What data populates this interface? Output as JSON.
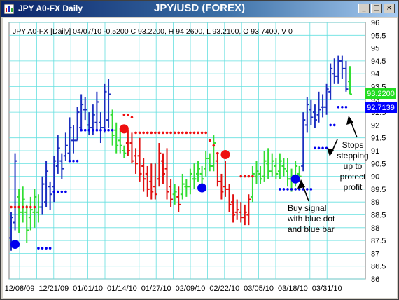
{
  "window": {
    "app_title": "JPY A0-FX Daily",
    "chart_title": "JPY/USD (FOREX)",
    "minimize_icon": "minimize-icon",
    "maximize_icon": "maximize-icon",
    "close_icon": "close-icon"
  },
  "header_info": "JPY A0-FX [Daily] 04/07/10  -0.5200 C 93.2200, H 94.2600, L 93.2100, O 93.7400, V 0",
  "price_labels": {
    "last_close": "93.2200",
    "stop_level": "92.7139"
  },
  "annotations": {
    "buy_signal": [
      "Buy signal",
      "with blue dot",
      "and blue bar"
    ],
    "stops": [
      "Stops",
      "stepping",
      "up to",
      "protect",
      "profit"
    ]
  },
  "colors": {
    "bar_blue": "#1c2fc0",
    "bar_green": "#33dd33",
    "bar_red": "#e01010",
    "stop_blue": "#0000ee",
    "stop_red": "#ee1010",
    "grid": "#66e0e0",
    "green_label": "#22dd22",
    "blue_label": "#0000ff"
  },
  "chart_data": {
    "type": "ohlc",
    "y_ticks": [
      86,
      86.5,
      87,
      87.5,
      88,
      88.5,
      89,
      89.5,
      90,
      90.5,
      91,
      91.5,
      92,
      92.5,
      93,
      93.5,
      94,
      94.5,
      95,
      95.5,
      96
    ],
    "ylim": [
      86,
      96
    ],
    "x_ticks": [
      "12/08/09",
      "12/21/09",
      "01/01/10",
      "01/14/10",
      "01/27/10",
      "02/09/10",
      "02/22/10",
      "03/05/10",
      "03/18/10",
      "03/31/10"
    ],
    "bars": [
      {
        "o": 87.6,
        "h": 88.6,
        "l": 87.1,
        "c": 88.4,
        "col": "blue"
      },
      {
        "o": 88.2,
        "h": 90.9,
        "l": 87.9,
        "c": 90.6,
        "col": "blue"
      },
      {
        "o": 89.2,
        "h": 89.5,
        "l": 87.8,
        "c": 88.6,
        "col": "green"
      },
      {
        "o": 88.6,
        "h": 89.6,
        "l": 88.2,
        "c": 89.1,
        "col": "green"
      },
      {
        "o": 88.6,
        "h": 88.9,
        "l": 87.4,
        "c": 87.9,
        "col": "green"
      },
      {
        "o": 88.4,
        "h": 89.2,
        "l": 87.9,
        "c": 88.7,
        "col": "green"
      },
      {
        "o": 88.6,
        "h": 89.5,
        "l": 88.0,
        "c": 89.2,
        "col": "green"
      },
      {
        "o": 88.6,
        "h": 89.3,
        "l": 88.2,
        "c": 88.8,
        "col": "green"
      },
      {
        "o": 88.8,
        "h": 90.0,
        "l": 88.5,
        "c": 89.7,
        "col": "blue"
      },
      {
        "o": 89.0,
        "h": 90.6,
        "l": 88.8,
        "c": 90.2,
        "col": "blue"
      },
      {
        "o": 89.6,
        "h": 89.8,
        "l": 88.7,
        "c": 89.3,
        "col": "blue"
      },
      {
        "o": 89.6,
        "h": 90.8,
        "l": 89.0,
        "c": 90.6,
        "col": "blue"
      },
      {
        "o": 90.4,
        "h": 91.6,
        "l": 90.1,
        "c": 91.1,
        "col": "blue"
      },
      {
        "o": 90.6,
        "h": 90.9,
        "l": 89.9,
        "c": 90.3,
        "col": "blue"
      },
      {
        "o": 90.8,
        "h": 91.7,
        "l": 90.6,
        "c": 91.2,
        "col": "blue"
      },
      {
        "o": 90.9,
        "h": 92.3,
        "l": 90.6,
        "c": 91.9,
        "col": "blue"
      },
      {
        "o": 91.4,
        "h": 92.0,
        "l": 90.9,
        "c": 91.4,
        "col": "blue"
      },
      {
        "o": 91.4,
        "h": 92.7,
        "l": 91.4,
        "c": 92.5,
        "col": "blue"
      },
      {
        "o": 91.9,
        "h": 93.2,
        "l": 91.8,
        "c": 92.8,
        "col": "blue"
      },
      {
        "o": 92.6,
        "h": 93.1,
        "l": 92.2,
        "c": 92.6,
        "col": "blue"
      },
      {
        "o": 92.0,
        "h": 92.5,
        "l": 91.6,
        "c": 91.9,
        "col": "blue"
      },
      {
        "o": 91.9,
        "h": 92.8,
        "l": 91.6,
        "c": 92.4,
        "col": "blue"
      },
      {
        "o": 92.1,
        "h": 93.3,
        "l": 91.8,
        "c": 92.9,
        "col": "blue"
      },
      {
        "o": 92.1,
        "h": 92.5,
        "l": 91.3,
        "c": 91.9,
        "col": "blue"
      },
      {
        "o": 91.9,
        "h": 93.6,
        "l": 91.7,
        "c": 93.3,
        "col": "blue"
      },
      {
        "o": 92.2,
        "h": 93.8,
        "l": 91.9,
        "c": 93.2,
        "col": "blue"
      },
      {
        "o": 92.4,
        "h": 92.6,
        "l": 91.2,
        "c": 91.6,
        "col": "green"
      },
      {
        "o": 91.8,
        "h": 92.1,
        "l": 90.9,
        "c": 91.2,
        "col": "green"
      },
      {
        "o": 91.4,
        "h": 91.9,
        "l": 90.9,
        "c": 91.2,
        "col": "green"
      },
      {
        "o": 91.0,
        "h": 91.2,
        "l": 90.7,
        "c": 90.9,
        "col": "green"
      },
      {
        "o": 91.3,
        "h": 91.8,
        "l": 90.8,
        "c": 91.0,
        "col": "red"
      },
      {
        "o": 91.3,
        "h": 91.7,
        "l": 90.5,
        "c": 90.6,
        "col": "red"
      },
      {
        "o": 90.8,
        "h": 91.1,
        "l": 90.1,
        "c": 90.5,
        "col": "red"
      },
      {
        "o": 90.8,
        "h": 91.5,
        "l": 89.8,
        "c": 90.1,
        "col": "red"
      },
      {
        "o": 90.4,
        "h": 90.7,
        "l": 89.4,
        "c": 89.9,
        "col": "red"
      },
      {
        "o": 90.1,
        "h": 90.4,
        "l": 89.2,
        "c": 89.5,
        "col": "red"
      },
      {
        "o": 89.8,
        "h": 90.5,
        "l": 89.1,
        "c": 89.4,
        "col": "red"
      },
      {
        "o": 89.6,
        "h": 90.5,
        "l": 89.1,
        "c": 89.3,
        "col": "red"
      },
      {
        "o": 89.9,
        "h": 91.3,
        "l": 89.6,
        "c": 90.9,
        "col": "red"
      },
      {
        "o": 90.6,
        "h": 90.9,
        "l": 89.7,
        "c": 90.1,
        "col": "red"
      },
      {
        "o": 90.3,
        "h": 91.1,
        "l": 89.1,
        "c": 89.4,
        "col": "red"
      },
      {
        "o": 89.6,
        "h": 89.9,
        "l": 88.8,
        "c": 89.1,
        "col": "red"
      },
      {
        "o": 89.3,
        "h": 89.7,
        "l": 88.9,
        "c": 89.4,
        "col": "green"
      },
      {
        "o": 89.2,
        "h": 89.6,
        "l": 88.6,
        "c": 88.9,
        "col": "red"
      },
      {
        "o": 89.3,
        "h": 90.1,
        "l": 89.1,
        "c": 89.7,
        "col": "green"
      },
      {
        "o": 89.6,
        "h": 89.9,
        "l": 89.2,
        "c": 89.6,
        "col": "green"
      },
      {
        "o": 89.6,
        "h": 90.3,
        "l": 89.3,
        "c": 90.1,
        "col": "green"
      },
      {
        "o": 89.9,
        "h": 90.5,
        "l": 89.5,
        "c": 89.9,
        "col": "green"
      },
      {
        "o": 90.1,
        "h": 90.6,
        "l": 89.8,
        "c": 90.3,
        "col": "green"
      },
      {
        "o": 90.1,
        "h": 90.4,
        "l": 89.6,
        "c": 89.9,
        "col": "green"
      },
      {
        "o": 90.3,
        "h": 91.0,
        "l": 90.0,
        "c": 90.7,
        "col": "green"
      },
      {
        "o": 90.7,
        "h": 90.9,
        "l": 90.2,
        "c": 90.4,
        "col": "green"
      },
      {
        "o": 90.4,
        "h": 91.6,
        "l": 90.2,
        "c": 91.3,
        "col": "green"
      },
      {
        "o": 90.6,
        "h": 90.9,
        "l": 89.6,
        "c": 89.8,
        "col": "red"
      },
      {
        "o": 89.8,
        "h": 90.1,
        "l": 89.1,
        "c": 89.4,
        "col": "red"
      },
      {
        "o": 89.6,
        "h": 90.6,
        "l": 89.2,
        "c": 89.5,
        "col": "red"
      },
      {
        "o": 89.5,
        "h": 89.7,
        "l": 88.6,
        "c": 88.9,
        "col": "red"
      },
      {
        "o": 89.0,
        "h": 89.3,
        "l": 88.2,
        "c": 88.5,
        "col": "red"
      },
      {
        "o": 88.6,
        "h": 89.1,
        "l": 88.3,
        "c": 88.7,
        "col": "red"
      },
      {
        "o": 88.6,
        "h": 89.0,
        "l": 88.2,
        "c": 88.4,
        "col": "red"
      },
      {
        "o": 88.4,
        "h": 88.9,
        "l": 88.1,
        "c": 88.6,
        "col": "red"
      },
      {
        "o": 88.5,
        "h": 89.3,
        "l": 88.1,
        "c": 89.1,
        "col": "red"
      },
      {
        "o": 89.2,
        "h": 90.4,
        "l": 89.0,
        "c": 90.1,
        "col": "green"
      },
      {
        "o": 90.0,
        "h": 90.6,
        "l": 89.7,
        "c": 90.2,
        "col": "green"
      },
      {
        "o": 90.1,
        "h": 90.4,
        "l": 89.7,
        "c": 89.9,
        "col": "green"
      },
      {
        "o": 90.0,
        "h": 91.0,
        "l": 89.8,
        "c": 90.6,
        "col": "green"
      },
      {
        "o": 90.5,
        "h": 91.1,
        "l": 89.9,
        "c": 90.2,
        "col": "green"
      },
      {
        "o": 90.2,
        "h": 90.9,
        "l": 90.0,
        "c": 90.6,
        "col": "green"
      },
      {
        "o": 90.4,
        "h": 90.7,
        "l": 89.9,
        "c": 90.1,
        "col": "green"
      },
      {
        "o": 90.2,
        "h": 90.9,
        "l": 89.9,
        "c": 90.6,
        "col": "green"
      },
      {
        "o": 90.4,
        "h": 90.7,
        "l": 90.0,
        "c": 90.3,
        "col": "green"
      },
      {
        "o": 90.2,
        "h": 90.7,
        "l": 89.6,
        "c": 89.9,
        "col": "green"
      },
      {
        "o": 89.9,
        "h": 90.3,
        "l": 89.4,
        "c": 89.8,
        "col": "green"
      },
      {
        "o": 89.8,
        "h": 90.6,
        "l": 89.6,
        "c": 90.4,
        "col": "green"
      },
      {
        "o": 90.1,
        "h": 90.4,
        "l": 89.8,
        "c": 90.0,
        "col": "green"
      },
      {
        "o": 90.4,
        "h": 92.5,
        "l": 90.2,
        "c": 92.2,
        "col": "blue"
      },
      {
        "o": 92.0,
        "h": 93.1,
        "l": 91.7,
        "c": 92.8,
        "col": "blue"
      },
      {
        "o": 92.6,
        "h": 93.0,
        "l": 92.0,
        "c": 92.3,
        "col": "blue"
      },
      {
        "o": 92.5,
        "h": 92.8,
        "l": 91.9,
        "c": 92.2,
        "col": "blue"
      },
      {
        "o": 92.4,
        "h": 93.3,
        "l": 92.1,
        "c": 92.6,
        "col": "blue"
      },
      {
        "o": 92.7,
        "h": 93.2,
        "l": 92.3,
        "c": 92.7,
        "col": "blue"
      },
      {
        "o": 92.7,
        "h": 93.6,
        "l": 92.4,
        "c": 93.4,
        "col": "blue"
      },
      {
        "o": 93.3,
        "h": 94.4,
        "l": 93.0,
        "c": 94.2,
        "col": "blue"
      },
      {
        "o": 94.0,
        "h": 94.6,
        "l": 93.6,
        "c": 93.9,
        "col": "blue"
      },
      {
        "o": 93.9,
        "h": 94.7,
        "l": 93.6,
        "c": 94.5,
        "col": "blue"
      },
      {
        "o": 94.5,
        "h": 94.7,
        "l": 93.8,
        "c": 94.2,
        "col": "blue"
      },
      {
        "o": 94.2,
        "h": 94.5,
        "l": 93.3,
        "c": 93.4,
        "col": "blue"
      },
      {
        "o": 93.7,
        "h": 94.3,
        "l": 93.2,
        "c": 93.2,
        "col": "green"
      }
    ],
    "stop_dots": [
      {
        "i": 0,
        "v": 88.8,
        "c": "red"
      },
      {
        "i": 1,
        "v": 88.8,
        "c": "red"
      },
      {
        "i": 2,
        "v": 88.8,
        "c": "red"
      },
      {
        "i": 3,
        "v": 88.8,
        "c": "red"
      },
      {
        "i": 4,
        "v": 88.8,
        "c": "red"
      },
      {
        "i": 5,
        "v": 88.8,
        "c": "red"
      },
      {
        "i": 6,
        "v": 88.8,
        "c": "red"
      },
      {
        "i": 7,
        "v": 87.2,
        "c": "blue"
      },
      {
        "i": 8,
        "v": 87.2,
        "c": "blue"
      },
      {
        "i": 9,
        "v": 87.2,
        "c": "blue"
      },
      {
        "i": 10,
        "v": 87.2,
        "c": "blue"
      },
      {
        "i": 11,
        "v": 89.4,
        "c": "blue"
      },
      {
        "i": 12,
        "v": 89.4,
        "c": "blue"
      },
      {
        "i": 13,
        "v": 89.4,
        "c": "blue"
      },
      {
        "i": 14,
        "v": 89.4,
        "c": "blue"
      },
      {
        "i": 15,
        "v": 90.6,
        "c": "blue"
      },
      {
        "i": 16,
        "v": 90.6,
        "c": "blue"
      },
      {
        "i": 17,
        "v": 90.6,
        "c": "blue"
      },
      {
        "i": 18,
        "v": 91.8,
        "c": "blue"
      },
      {
        "i": 19,
        "v": 91.8,
        "c": "blue"
      },
      {
        "i": 20,
        "v": 91.8,
        "c": "blue"
      },
      {
        "i": 21,
        "v": 91.8,
        "c": "blue"
      },
      {
        "i": 22,
        "v": 91.8,
        "c": "blue"
      },
      {
        "i": 23,
        "v": 91.8,
        "c": "blue"
      },
      {
        "i": 24,
        "v": 91.8,
        "c": "blue"
      },
      {
        "i": 25,
        "v": 91.8,
        "c": "blue"
      },
      {
        "i": 26,
        "v": 91.8,
        "c": "blue"
      },
      {
        "i": 29,
        "v": 92.4,
        "c": "red"
      },
      {
        "i": 30,
        "v": 92.4,
        "c": "red"
      },
      {
        "i": 31,
        "v": 92.3,
        "c": "red"
      },
      {
        "i": 32,
        "v": 91.7,
        "c": "red"
      },
      {
        "i": 33,
        "v": 91.7,
        "c": "red"
      },
      {
        "i": 34,
        "v": 91.7,
        "c": "red"
      },
      {
        "i": 35,
        "v": 91.7,
        "c": "red"
      },
      {
        "i": 36,
        "v": 91.7,
        "c": "red"
      },
      {
        "i": 37,
        "v": 91.7,
        "c": "red"
      },
      {
        "i": 38,
        "v": 91.7,
        "c": "red"
      },
      {
        "i": 39,
        "v": 91.7,
        "c": "red"
      },
      {
        "i": 40,
        "v": 91.7,
        "c": "red"
      },
      {
        "i": 41,
        "v": 91.7,
        "c": "red"
      },
      {
        "i": 42,
        "v": 91.7,
        "c": "red"
      },
      {
        "i": 43,
        "v": 91.7,
        "c": "red"
      },
      {
        "i": 44,
        "v": 91.7,
        "c": "red"
      },
      {
        "i": 45,
        "v": 91.7,
        "c": "red"
      },
      {
        "i": 46,
        "v": 91.7,
        "c": "red"
      },
      {
        "i": 47,
        "v": 91.7,
        "c": "red"
      },
      {
        "i": 48,
        "v": 91.7,
        "c": "red"
      },
      {
        "i": 49,
        "v": 91.7,
        "c": "red"
      },
      {
        "i": 50,
        "v": 91.7,
        "c": "red"
      },
      {
        "i": 51,
        "v": 91.4,
        "c": "red"
      },
      {
        "i": 52,
        "v": 91.2,
        "c": "red"
      },
      {
        "i": 53,
        "v": 90.9,
        "c": "red"
      },
      {
        "i": 59,
        "v": 90.0,
        "c": "red"
      },
      {
        "i": 60,
        "v": 90.0,
        "c": "red"
      },
      {
        "i": 61,
        "v": 90.0,
        "c": "red"
      },
      {
        "i": 62,
        "v": 90.0,
        "c": "red"
      },
      {
        "i": 69,
        "v": 89.5,
        "c": "blue"
      },
      {
        "i": 70,
        "v": 89.5,
        "c": "blue"
      },
      {
        "i": 71,
        "v": 89.5,
        "c": "blue"
      },
      {
        "i": 72,
        "v": 89.5,
        "c": "blue"
      },
      {
        "i": 73,
        "v": 89.5,
        "c": "blue"
      },
      {
        "i": 74,
        "v": 89.5,
        "c": "blue"
      },
      {
        "i": 75,
        "v": 89.5,
        "c": "blue"
      },
      {
        "i": 76,
        "v": 89.5,
        "c": "blue"
      },
      {
        "i": 77,
        "v": 89.5,
        "c": "blue"
      },
      {
        "i": 78,
        "v": 91.1,
        "c": "blue"
      },
      {
        "i": 79,
        "v": 91.1,
        "c": "blue"
      },
      {
        "i": 80,
        "v": 91.1,
        "c": "blue"
      },
      {
        "i": 81,
        "v": 91.1,
        "c": "blue"
      },
      {
        "i": 82,
        "v": 92.0,
        "c": "blue"
      },
      {
        "i": 83,
        "v": 92.0,
        "c": "blue"
      },
      {
        "i": 84,
        "v": 92.7,
        "c": "blue"
      },
      {
        "i": 85,
        "v": 92.7,
        "c": "blue"
      },
      {
        "i": 86,
        "v": 92.7,
        "c": "blue"
      }
    ],
    "signal_dots": [
      {
        "i": 1,
        "v": 87.35,
        "c": "blue"
      },
      {
        "i": 29,
        "v": 91.85,
        "c": "red"
      },
      {
        "i": 49,
        "v": 89.55,
        "c": "blue"
      },
      {
        "i": 55,
        "v": 90.85,
        "c": "red"
      },
      {
        "i": 73,
        "v": 89.9,
        "c": "blue"
      }
    ]
  }
}
